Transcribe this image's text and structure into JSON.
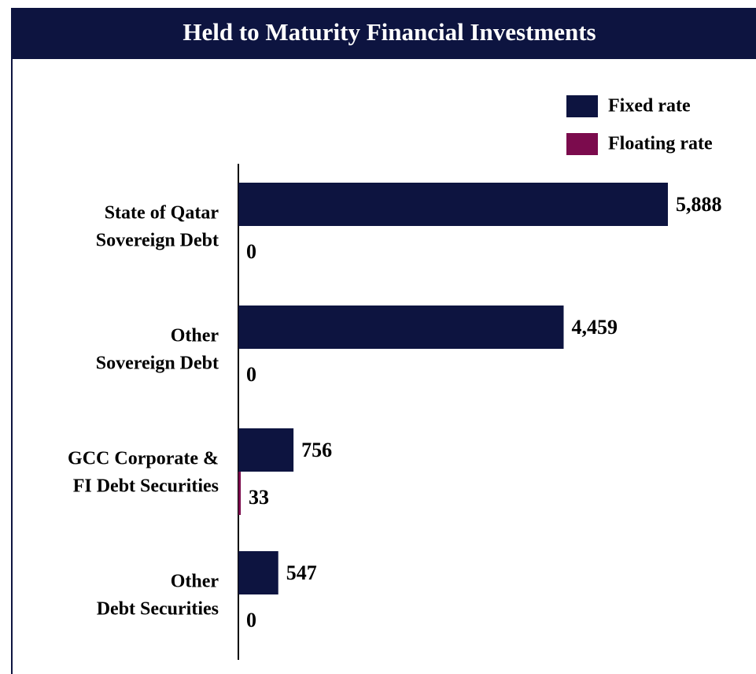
{
  "chart_data": {
    "type": "bar",
    "orientation": "horizontal",
    "title": "Held to Maturity Financial Investments",
    "categories": [
      [
        "State of Qatar",
        "Sovereign Debt"
      ],
      [
        "Other",
        "Sovereign Debt"
      ],
      [
        "GCC Corporate &",
        "FI Debt Securities"
      ],
      [
        "Other",
        "Debt Securities"
      ]
    ],
    "series": [
      {
        "name": "Fixed rate",
        "color": "#0d1440",
        "values": [
          5888,
          4459,
          756,
          547
        ],
        "value_labels": [
          "5,888",
          "4,459",
          "756",
          "547"
        ]
      },
      {
        "name": "Floating rate",
        "color": "#7b0b4d",
        "values": [
          0,
          0,
          33,
          0
        ]
      }
    ],
    "legend": "top-right"
  }
}
